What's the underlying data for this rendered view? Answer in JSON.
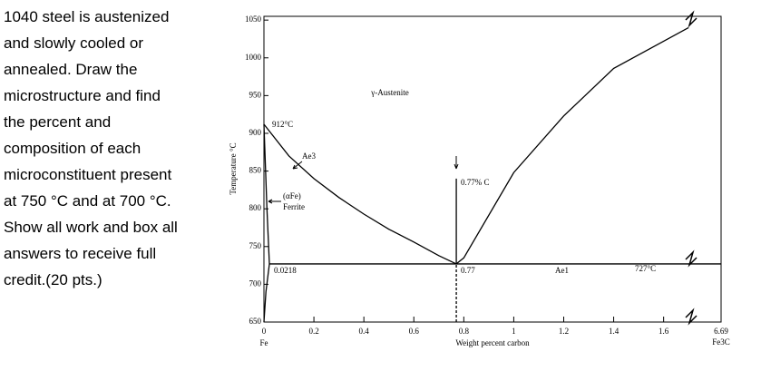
{
  "question": {
    "lines": [
      "1040 steel is austenized",
      "and slowly cooled or",
      "annealed. Draw the",
      "microstructure and find",
      "the percent and",
      "composition of each",
      "microconstituent present",
      "at 750 °C and at 700 °C.",
      "Show all work and box all",
      "answers to receive full",
      "credit.(20 pts.)"
    ]
  },
  "chart_data": {
    "type": "line",
    "xlabel": "Weight percent carbon",
    "ylabel": "Temperature °C",
    "xlim": [
      0,
      1.83
    ],
    "ylim": [
      650,
      1055
    ],
    "xticks": [
      0,
      0.2,
      0.4,
      0.6,
      0.8,
      1,
      1.2,
      1.4,
      1.6
    ],
    "yticks": [
      650,
      700,
      750,
      800,
      850,
      900,
      950,
      1000,
      1050
    ],
    "annotations": {
      "t912": "912°C",
      "austenite": "γ-Austenite",
      "ae3": "Ae3",
      "alpha": "(αFe)",
      "ferrite": "Ferrite",
      "c077": "0.77% C",
      "x0218": "0.0218",
      "x077": "0.77",
      "ae1": "Ae1",
      "t727": "727°C",
      "fe": "Fe",
      "fe3c": "Fe3C",
      "x669": "6.69"
    },
    "series": [
      {
        "color": "#000000",
        "x": [
          0,
          0.1,
          0.2,
          0.3,
          0.4,
          0.5,
          0.6,
          0.7,
          0.77
        ],
        "values": [
          912,
          870,
          840,
          815,
          793,
          773,
          756,
          738,
          727
        ]
      },
      {
        "color": "#000000",
        "x": [
          0.77,
          0.8,
          1,
          1.2,
          1.4,
          1.6,
          1.7
        ],
        "values": [
          727,
          735,
          848,
          923,
          986,
          1022,
          1040
        ]
      },
      {
        "color": "#000000",
        "x": [
          0,
          0.012,
          0.0218
        ],
        "values": [
          912,
          800,
          727
        ]
      },
      {
        "color": "#000000",
        "x": [
          0.0218,
          0.008,
          0
        ],
        "values": [
          727,
          690,
          650
        ]
      },
      {
        "color": "#000000",
        "x": [
          0.0218,
          1.83
        ],
        "values": [
          727,
          727
        ]
      },
      {
        "color": "#000000",
        "x": [
          0.77,
          0.77
        ],
        "values": [
          727,
          840
        ]
      },
      {
        "color": "#000000",
        "dash": true,
        "x": [
          0.77,
          0.77
        ],
        "values": [
          650,
          727
        ]
      }
    ]
  }
}
